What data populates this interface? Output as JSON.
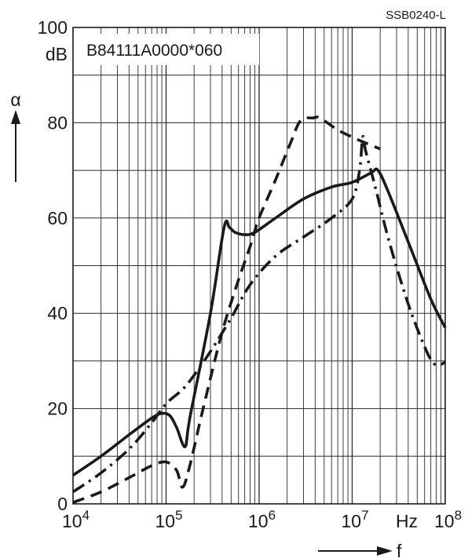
{
  "figure_code": "SSB0240-L",
  "colors": {
    "ink": "#1a1a1a",
    "grid": "#2a2a2a",
    "background": "#ffffff"
  },
  "chart_data": {
    "type": "line",
    "title": "B84111A0000*060",
    "xlabel": "f",
    "ylabel": "α",
    "x_unit": "Hz",
    "y_unit": "dB",
    "x_scale": "log",
    "xlim": [
      10000,
      100000000
    ],
    "ylim": [
      0,
      100
    ],
    "x_tick_labels": [
      {
        "value": 10000,
        "base": "10",
        "exp": "4"
      },
      {
        "value": 100000,
        "base": "10",
        "exp": "5"
      },
      {
        "value": 1000000,
        "base": "10",
        "exp": "6"
      },
      {
        "value": 10000000,
        "base": "10",
        "exp": "7"
      },
      {
        "value": 100000000,
        "base": "10",
        "exp": "8"
      }
    ],
    "y_tick_labels": [
      {
        "value": 0,
        "label": "0"
      },
      {
        "value": 20,
        "label": "20"
      },
      {
        "value": 40,
        "label": "40"
      },
      {
        "value": 60,
        "label": "60"
      },
      {
        "value": 80,
        "label": "80"
      },
      {
        "value": 100,
        "label": "100"
      }
    ],
    "grid": true,
    "series": [
      {
        "style": "solid",
        "points": [
          [
            10000,
            6
          ],
          [
            20000,
            10
          ],
          [
            40000,
            14.5
          ],
          [
            70000,
            18
          ],
          [
            90000,
            19
          ],
          [
            110000,
            18.5
          ],
          [
            130000,
            16
          ],
          [
            160000,
            12
          ],
          [
            180000,
            18
          ],
          [
            300000,
            40
          ],
          [
            420000,
            58
          ],
          [
            480000,
            58
          ],
          [
            550000,
            57
          ],
          [
            700000,
            56.5
          ],
          [
            900000,
            57
          ],
          [
            1500000,
            60
          ],
          [
            3000000,
            64
          ],
          [
            6000000,
            66.5
          ],
          [
            10000000,
            67.5
          ],
          [
            16000000,
            69.5
          ],
          [
            19000000,
            70
          ],
          [
            25000000,
            65
          ],
          [
            40000000,
            55
          ],
          [
            70000000,
            43
          ],
          [
            100000000,
            37
          ]
        ]
      },
      {
        "style": "dashed",
        "points": [
          [
            10000,
            0.3
          ],
          [
            20000,
            2.5
          ],
          [
            40000,
            5.5
          ],
          [
            70000,
            8
          ],
          [
            100000,
            8.8
          ],
          [
            130000,
            7
          ],
          [
            150000,
            3.5
          ],
          [
            180000,
            8
          ],
          [
            250000,
            20
          ],
          [
            400000,
            36
          ],
          [
            600000,
            47
          ],
          [
            800000,
            54
          ],
          [
            1000000,
            60
          ],
          [
            1500000,
            68
          ],
          [
            2200000,
            76
          ],
          [
            2800000,
            80.5
          ],
          [
            3800000,
            81
          ],
          [
            4500000,
            81
          ],
          [
            7000000,
            78.5
          ],
          [
            10000000,
            77
          ],
          [
            13000000,
            76
          ],
          [
            15000000,
            75.5
          ],
          [
            20000000,
            74.5
          ]
        ]
      },
      {
        "style": "dash-dot",
        "points": [
          [
            10000,
            2.5
          ],
          [
            20000,
            6.5
          ],
          [
            40000,
            11.5
          ],
          [
            70000,
            17
          ],
          [
            100000,
            21
          ],
          [
            150000,
            24
          ],
          [
            200000,
            27
          ],
          [
            300000,
            32
          ],
          [
            500000,
            39
          ],
          [
            800000,
            46
          ],
          [
            1500000,
            52
          ],
          [
            3000000,
            56
          ],
          [
            6000000,
            60
          ],
          [
            10000000,
            64
          ],
          [
            12000000,
            70
          ],
          [
            13000000,
            77
          ],
          [
            14000000,
            74
          ],
          [
            18000000,
            66
          ],
          [
            25000000,
            55
          ],
          [
            40000000,
            42
          ],
          [
            60000000,
            33
          ],
          [
            75000000,
            29.5
          ],
          [
            90000000,
            29.3
          ],
          [
            100000000,
            29.8
          ]
        ]
      }
    ]
  }
}
